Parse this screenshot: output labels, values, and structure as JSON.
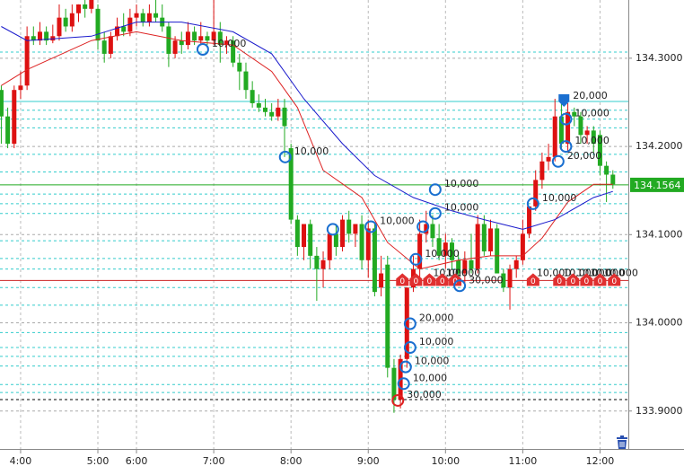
{
  "chart_data": {
    "type": "candlestick",
    "xlim": [
      -0.2,
      97.4
    ],
    "ylim": [
      133.857,
      134.366
    ],
    "xticks": [
      {
        "value": 3,
        "label": "4:00"
      },
      {
        "value": 15,
        "label": "5:00"
      },
      {
        "value": 21,
        "label": "6:00"
      },
      {
        "value": 33,
        "label": "7:00"
      },
      {
        "value": 45,
        "label": "8:00"
      },
      {
        "value": 57,
        "label": "9:00"
      },
      {
        "value": 69,
        "label": "10:00"
      },
      {
        "value": 81,
        "label": "11:00"
      },
      {
        "value": 93,
        "label": "12:00"
      }
    ],
    "yticks": [
      {
        "value": 134.3,
        "label": "134.3000"
      },
      {
        "value": 134.2,
        "label": "134.2000"
      },
      {
        "value": 134.1,
        "label": "134.1000"
      },
      {
        "value": 134.0,
        "label": "134.0000"
      },
      {
        "value": 133.9,
        "label": "133.9000"
      }
    ],
    "grid": true,
    "up_color": "#dd1111",
    "down_color": "#22aa22",
    "open": [
      134.264,
      134.234,
      134.203,
      134.264,
      134.269,
      134.325,
      134.32,
      134.33,
      134.32,
      134.325,
      134.346,
      134.336,
      134.351,
      134.361,
      134.356,
      134.356,
      134.32,
      134.305,
      134.325,
      134.336,
      134.33,
      134.346,
      134.351,
      134.341,
      134.351,
      134.346,
      134.336,
      134.305,
      134.32,
      134.315,
      134.33,
      134.32,
      134.325,
      134.32,
      134.33,
      134.315,
      134.32,
      134.295,
      134.285,
      134.264,
      134.249,
      134.244,
      134.239,
      134.234,
      134.244,
      134.198,
      134.117,
      134.086,
      134.112,
      134.076,
      134.061,
      134.071,
      134.101,
      134.086,
      134.117,
      134.101,
      134.112,
      134.071,
      134.107,
      134.04,
      134.066,
      133.949,
      133.913,
      133.959,
      134.04,
      134.061,
      134.101,
      134.112,
      134.096,
      134.076,
      134.091,
      134.071,
      134.056,
      134.071,
      134.061,
      134.112,
      134.081,
      134.107,
      134.056,
      134.04,
      134.061,
      134.071,
      134.101,
      134.132,
      134.162,
      134.183,
      134.188,
      134.234,
      134.203,
      134.239,
      134.234,
      134.213,
      134.218,
      134.213,
      134.178,
      134.168
    ],
    "high": [
      134.269,
      134.244,
      134.269,
      134.285,
      134.336,
      134.336,
      134.341,
      134.336,
      134.338,
      134.361,
      134.356,
      134.361,
      134.361,
      134.366,
      134.366,
      134.361,
      134.33,
      134.33,
      134.346,
      134.351,
      134.356,
      134.361,
      134.356,
      134.361,
      134.366,
      134.361,
      134.341,
      134.325,
      134.33,
      134.341,
      134.336,
      134.341,
      134.33,
      134.366,
      134.341,
      134.325,
      134.325,
      134.305,
      134.295,
      134.274,
      134.259,
      134.254,
      134.249,
      134.254,
      134.254,
      134.203,
      134.122,
      134.112,
      134.117,
      134.086,
      134.081,
      134.101,
      134.112,
      134.122,
      134.127,
      134.112,
      134.122,
      134.117,
      134.112,
      134.076,
      134.076,
      133.959,
      133.964,
      134.04,
      134.076,
      134.117,
      134.127,
      134.122,
      134.112,
      134.101,
      134.096,
      134.081,
      134.081,
      134.101,
      134.122,
      134.122,
      134.117,
      134.112,
      134.061,
      134.066,
      134.076,
      134.117,
      134.132,
      134.173,
      134.193,
      134.203,
      134.254,
      134.249,
      134.249,
      134.244,
      134.239,
      134.223,
      134.223,
      134.218,
      134.183,
      134.173
    ],
    "low": [
      134.203,
      134.198,
      134.198,
      134.254,
      134.264,
      134.315,
      134.315,
      134.315,
      134.317,
      134.32,
      134.33,
      134.33,
      134.341,
      134.346,
      134.351,
      134.31,
      134.295,
      134.3,
      134.32,
      134.325,
      134.325,
      134.336,
      134.336,
      134.336,
      134.341,
      134.33,
      134.29,
      134.3,
      134.305,
      134.31,
      134.315,
      134.315,
      134.315,
      134.315,
      134.295,
      134.305,
      134.29,
      134.264,
      134.254,
      134.244,
      134.239,
      134.234,
      134.229,
      134.229,
      134.188,
      134.112,
      134.076,
      134.071,
      134.061,
      134.025,
      134.04,
      134.061,
      134.076,
      134.081,
      134.091,
      134.086,
      134.061,
      134.051,
      134.03,
      134.03,
      133.938,
      133.898,
      133.903,
      133.949,
      134.035,
      134.051,
      134.091,
      134.086,
      134.071,
      134.061,
      134.061,
      134.051,
      134.045,
      134.056,
      134.056,
      134.076,
      134.076,
      134.056,
      134.035,
      134.015,
      134.051,
      134.066,
      134.096,
      134.127,
      134.152,
      134.173,
      134.183,
      134.198,
      134.193,
      134.223,
      134.203,
      134.203,
      134.193,
      134.167,
      134.137,
      134.152
    ],
    "close": [
      134.234,
      134.203,
      134.264,
      134.269,
      134.325,
      134.32,
      134.33,
      134.32,
      134.325,
      134.346,
      134.336,
      134.351,
      134.361,
      134.356,
      134.366,
      134.32,
      134.305,
      134.325,
      134.336,
      134.33,
      134.346,
      134.351,
      134.341,
      134.351,
      134.346,
      134.336,
      134.305,
      134.32,
      134.315,
      134.33,
      134.32,
      134.325,
      134.32,
      134.33,
      134.315,
      134.32,
      134.295,
      134.285,
      134.264,
      134.249,
      134.244,
      134.239,
      134.234,
      134.244,
      134.223,
      134.117,
      134.086,
      134.112,
      134.076,
      134.061,
      134.071,
      134.101,
      134.086,
      134.117,
      134.101,
      134.112,
      134.071,
      134.107,
      134.035,
      134.056,
      133.949,
      133.913,
      133.959,
      134.04,
      134.061,
      134.101,
      134.112,
      134.096,
      134.076,
      134.091,
      134.071,
      134.056,
      134.071,
      134.061,
      134.112,
      134.081,
      134.107,
      134.056,
      134.04,
      134.061,
      134.071,
      134.101,
      134.132,
      134.162,
      134.183,
      134.188,
      134.234,
      134.203,
      134.239,
      134.234,
      134.213,
      134.218,
      134.203,
      134.178,
      134.168,
      134.157
    ],
    "averages": [
      {
        "color": "#dd2222",
        "x": [
          0,
          4,
          14,
          21,
          28,
          36,
          42,
          46,
          50,
          56,
          60,
          65,
          71,
          76,
          81,
          84,
          88,
          92,
          95
        ],
        "values": [
          134.269,
          134.287,
          134.32,
          134.33,
          134.32,
          134.315,
          134.285,
          134.244,
          134.173,
          134.142,
          134.091,
          134.061,
          134.071,
          134.076,
          134.076,
          134.096,
          134.137,
          134.157,
          134.157
        ]
      },
      {
        "color": "#1a1acc",
        "x": [
          0,
          4,
          14,
          21,
          28,
          36,
          42,
          47,
          53,
          58,
          64,
          70,
          75,
          81,
          86,
          92,
          95
        ],
        "values": [
          134.336,
          134.32,
          134.325,
          134.341,
          134.341,
          134.33,
          134.305,
          134.254,
          134.203,
          134.167,
          134.142,
          134.127,
          134.117,
          134.106,
          134.117,
          134.142,
          134.149
        ]
      }
    ],
    "levels": [
      {
        "price": 134.251,
        "color": "#33cccc",
        "style": "solid"
      },
      {
        "price": 134.1564,
        "color": "#22aa22",
        "style": "solid"
      },
      {
        "price": 134.048,
        "color": "#cc2222",
        "style": "solid"
      },
      {
        "price": 133.913,
        "color": "#000000",
        "style": "dashed"
      },
      {
        "price": 134.307,
        "color": "#33cccc",
        "style": "dashed"
      },
      {
        "price": 134.241,
        "color": "#33cccc",
        "style": "dashed"
      },
      {
        "price": 134.231,
        "color": "#33cccc",
        "style": "dashed"
      },
      {
        "price": 134.221,
        "color": "#33cccc",
        "style": "dashed"
      },
      {
        "price": 134.191,
        "color": "#33cccc",
        "style": "dashed"
      },
      {
        "price": 134.171,
        "color": "#33cccc",
        "style": "dashed"
      },
      {
        "price": 134.146,
        "color": "#33cccc",
        "style": "dashed"
      },
      {
        "price": 134.135,
        "color": "#33cccc",
        "style": "dashed"
      },
      {
        "price": 134.124,
        "color": "#33cccc",
        "style": "dashed"
      },
      {
        "price": 134.093,
        "color": "#33cccc",
        "style": "dashed"
      },
      {
        "price": 134.073,
        "color": "#33cccc",
        "style": "dashed"
      },
      {
        "price": 134.061,
        "color": "#33cccc",
        "style": "dashed"
      },
      {
        "price": 134.04,
        "color": "#33cccc",
        "style": "dashed"
      },
      {
        "price": 134.02,
        "color": "#33cccc",
        "style": "dashed"
      },
      {
        "price": 133.989,
        "color": "#33cccc",
        "style": "dashed"
      },
      {
        "price": 133.972,
        "color": "#33cccc",
        "style": "dashed"
      },
      {
        "price": 133.962,
        "color": "#33cccc",
        "style": "dashed"
      },
      {
        "price": 133.951,
        "color": "#33cccc",
        "style": "dashed"
      },
      {
        "price": 133.93,
        "color": "#33cccc",
        "style": "dashed"
      },
      {
        "price": 133.921,
        "color": "#33cccc",
        "style": "dashed"
      }
    ],
    "current_price": {
      "value": 134.1564,
      "label": "134.1564",
      "color": "#22aa22"
    },
    "markers": [
      {
        "x": 31.3,
        "price": 134.31,
        "label": "10,000",
        "color": "#1a6fd0"
      },
      {
        "x": 44.1,
        "price": 134.188,
        "label": "10,000",
        "color": "#1a6fd0"
      },
      {
        "x": 51.5,
        "price": 134.106,
        "color": "#1a6fd0"
      },
      {
        "x": 57.4,
        "price": 134.109,
        "label": "10,000",
        "color": "#1a6fd0"
      },
      {
        "x": 65.5,
        "price": 134.109,
        "color": "#1a6fd0"
      },
      {
        "x": 67.4,
        "price": 134.151,
        "label": "10,000",
        "color": "#1a6fd0"
      },
      {
        "x": 67.4,
        "price": 134.124,
        "label": "10,000",
        "color": "#1a6fd0"
      },
      {
        "x": 64.4,
        "price": 134.072,
        "label": "10,000",
        "color": "#1a6fd0"
      },
      {
        "x": 71.2,
        "price": 134.042,
        "label": "30,000",
        "color": "#1a6fd0"
      },
      {
        "x": 63.5,
        "price": 133.999,
        "label": "20,000",
        "color": "#1a6fd0"
      },
      {
        "x": 63.5,
        "price": 133.972,
        "label": "10,000",
        "color": "#1a6fd0"
      },
      {
        "x": 62.8,
        "price": 133.95,
        "label": "10,000",
        "color": "#1a6fd0"
      },
      {
        "x": 62.5,
        "price": 133.931,
        "label": "10,000",
        "color": "#1a6fd0"
      },
      {
        "x": 61.6,
        "price": 133.912,
        "label": "30,000",
        "color": "#dd2222"
      },
      {
        "x": 82.6,
        "price": 134.135,
        "label": "10,000",
        "color": "#1a6fd0"
      },
      {
        "x": 86.5,
        "price": 134.183,
        "label": "20,000",
        "color": "#1a6fd0"
      },
      {
        "x": 87.7,
        "price": 134.2,
        "label": "10,000",
        "color": "#1a6fd0"
      },
      {
        "x": 87.7,
        "price": 134.231,
        "label": "10,000",
        "color": "#1a6fd0"
      },
      {
        "x": 87.4,
        "price": 134.251,
        "label": "20,000",
        "color": "#1a6fd0",
        "shape": "pin"
      }
    ],
    "orders": [
      {
        "x": 62.3,
        "price": 134.048,
        "label": "0"
      },
      {
        "x": 64.4,
        "price": 134.048,
        "label": "0"
      },
      {
        "x": 66.5,
        "price": 134.048,
        "label": "0",
        "qty": "10,000"
      },
      {
        "x": 68.5,
        "price": 134.048,
        "label": "0",
        "qty": "10,000"
      },
      {
        "x": 70.5,
        "price": 134.048,
        "label": "0"
      },
      {
        "x": 82.6,
        "price": 134.048,
        "label": "0",
        "qty": "10,000"
      },
      {
        "x": 86.7,
        "price": 134.048,
        "label": "0",
        "qty": "10,000"
      },
      {
        "x": 88.8,
        "price": 134.048,
        "label": "0",
        "qty": "10,000"
      },
      {
        "x": 90.9,
        "price": 134.048,
        "label": "0",
        "qty": "10,000"
      },
      {
        "x": 93.0,
        "price": 134.048,
        "label": "0",
        "qty": "10,000"
      },
      {
        "x": 95.2,
        "price": 134.048,
        "label": "0"
      }
    ]
  }
}
